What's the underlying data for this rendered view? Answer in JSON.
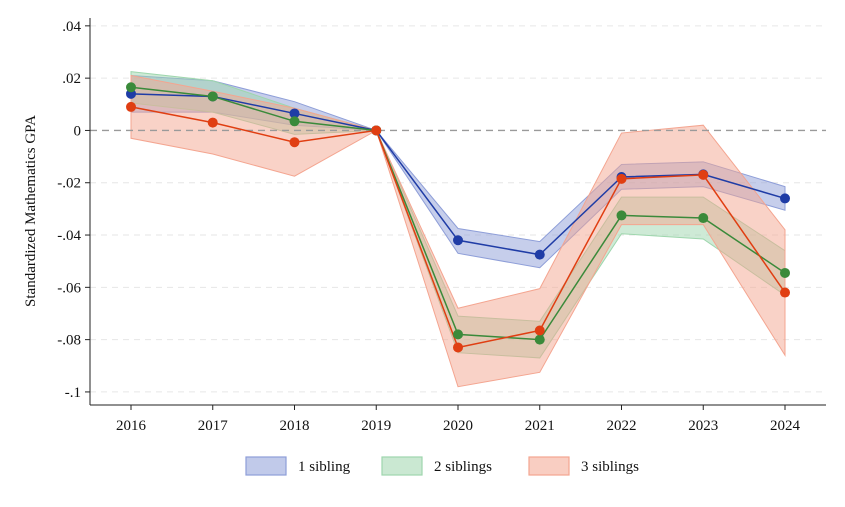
{
  "chart_data": {
    "type": "line",
    "title": "",
    "xlabel": "",
    "ylabel": "Standardized Mathematics GPA",
    "x": [
      2016,
      2017,
      2018,
      2019,
      2020,
      2021,
      2022,
      2023,
      2024
    ],
    "x_tick_labels": [
      "2016",
      "2017",
      "2018",
      "2019",
      "2020",
      "2021",
      "2022",
      "2023",
      "2024"
    ],
    "ylim": [
      -0.105,
      0.043
    ],
    "y_ticks": [
      0.04,
      0.02,
      0,
      -0.02,
      -0.04,
      -0.06,
      -0.08,
      -0.1
    ],
    "y_tick_labels": [
      ".04",
      ".02",
      "0",
      "-.02",
      "-.04",
      "-.06",
      "-.08",
      "-.1"
    ],
    "reference_line": 0,
    "grid": "horizontal dashed",
    "legend_position": "bottom",
    "series": [
      {
        "name": "1 sibling",
        "line_color": "#1f3ca6",
        "band_color": "#8e9ed8",
        "values": [
          0.014,
          0.013,
          0.0065,
          0,
          -0.042,
          -0.0475,
          -0.0178,
          -0.0168,
          -0.026
        ],
        "lower": [
          0.007,
          0.007,
          0.002,
          0,
          -0.047,
          -0.0525,
          -0.0225,
          -0.0215,
          -0.0305
        ],
        "upper": [
          0.021,
          0.019,
          0.011,
          0,
          -0.0375,
          -0.0425,
          -0.013,
          -0.012,
          -0.0215
        ]
      },
      {
        "name": "2 siblings",
        "line_color": "#3a8a3a",
        "band_color": "#9ed6ad",
        "values": [
          0.0165,
          0.013,
          0.0035,
          0,
          -0.078,
          -0.08,
          -0.0325,
          -0.0335,
          -0.0545
        ],
        "lower": [
          0.0105,
          0.007,
          -0.0015,
          0,
          -0.085,
          -0.087,
          -0.0395,
          -0.0415,
          -0.063
        ],
        "upper": [
          0.0225,
          0.019,
          0.0085,
          0,
          -0.071,
          -0.073,
          -0.0255,
          -0.0255,
          -0.046
        ]
      },
      {
        "name": "3 siblings",
        "line_color": "#e03e12",
        "band_color": "#f4a590",
        "values": [
          0.009,
          0.003,
          -0.0045,
          0,
          -0.083,
          -0.0765,
          -0.0185,
          -0.017,
          -0.062
        ],
        "lower": [
          -0.003,
          -0.009,
          -0.0175,
          0,
          -0.098,
          -0.0925,
          -0.036,
          -0.036,
          -0.086
        ],
        "upper": [
          0.021,
          0.015,
          0.0085,
          0,
          -0.068,
          -0.0605,
          -0.001,
          0.002,
          -0.038
        ]
      }
    ]
  }
}
